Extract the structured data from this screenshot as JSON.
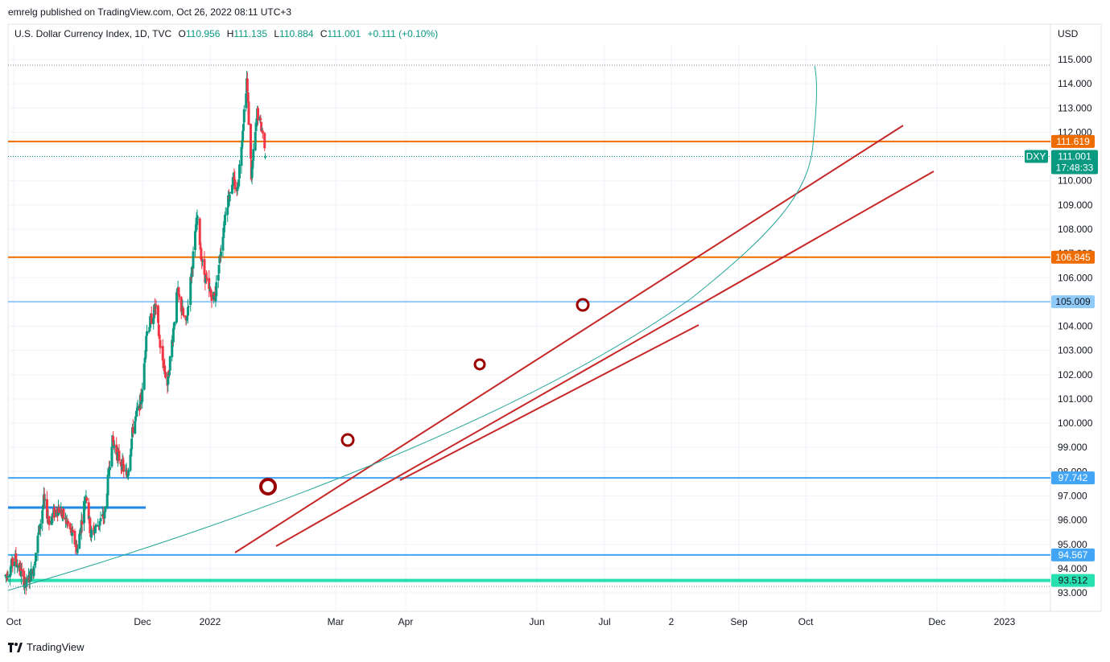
{
  "header": {
    "published": "emrelg published on TradingView.com, Oct 26, 2022 08:11 UTC+3",
    "symbol_desc": "U.S. Dollar Currency Index, 1D, TVC",
    "o_label": "O",
    "o_value": "110.956",
    "h_label": "H",
    "h_value": "111.135",
    "l_label": "L",
    "l_value": "110.884",
    "c_label": "C",
    "c_value": "111.001",
    "change": "+0.111 (+0.10%)",
    "currency": "USD"
  },
  "footer": {
    "brand": "TradingView"
  },
  "colors": {
    "up": "#089981",
    "down": "#f23645",
    "orange": "#ef6c00",
    "light_blue": "#90caf9",
    "blue": "#42a5f5",
    "green": "#26e0b0",
    "channel": "#c62828",
    "curve": "#26a69a"
  },
  "chart_data": {
    "type": "candlestick",
    "symbol": "DXY",
    "timeframe": "1D",
    "ylim": [
      92.8,
      115.3
    ],
    "y_ticks": [
      "93.000",
      "94.000",
      "95.000",
      "96.000",
      "97.000",
      "98.000",
      "99.000",
      "100.000",
      "101.000",
      "102.000",
      "103.000",
      "104.000",
      "105.000",
      "106.000",
      "107.000",
      "108.000",
      "109.000",
      "110.000",
      "111.000",
      "112.000",
      "113.000",
      "114.000",
      "115.000"
    ],
    "x_ticks": [
      "Oct",
      "Dec",
      "2022",
      "Mar",
      "Apr",
      "Jun",
      "Jul",
      "2",
      "Sep",
      "Oct",
      "Dec",
      "2023"
    ],
    "last_price": {
      "label": "DXY",
      "value": "111.001",
      "countdown": "17:48:33"
    },
    "price_levels": [
      {
        "label": "111.619",
        "value": 111.619,
        "color": "orange"
      },
      {
        "label": "106.845",
        "value": 106.845,
        "color": "orange"
      },
      {
        "label": "105.009",
        "value": 105.009,
        "color": "light_blue"
      },
      {
        "label": "97.742",
        "value": 97.742,
        "color": "blue"
      },
      {
        "label": "94.567",
        "value": 94.567,
        "color": "blue"
      },
      {
        "label": "93.512",
        "value": 93.512,
        "color": "green"
      }
    ],
    "series_anchors": [
      [
        "2021-09-27",
        93.7
      ],
      [
        "2021-10-12",
        94.4
      ],
      [
        "2021-10-28",
        93.3
      ],
      [
        "2021-11-08",
        94.0
      ],
      [
        "2021-11-24",
        96.8
      ],
      [
        "2021-12-02",
        96.0
      ],
      [
        "2021-12-16",
        96.5
      ],
      [
        "2021-12-31",
        95.8
      ],
      [
        "2022-01-14",
        94.8
      ],
      [
        "2022-01-27",
        97.2
      ],
      [
        "2022-02-03",
        95.4
      ],
      [
        "2022-02-24",
        96.2
      ],
      [
        "2022-03-07",
        99.3
      ],
      [
        "2022-03-14",
        98.8
      ],
      [
        "2022-03-30",
        97.8
      ],
      [
        "2022-04-08",
        99.8
      ],
      [
        "2022-04-22",
        101.2
      ],
      [
        "2022-04-28",
        103.7
      ],
      [
        "2022-05-12",
        104.8
      ],
      [
        "2022-05-20",
        103.0
      ],
      [
        "2022-05-30",
        101.6
      ],
      [
        "2022-06-14",
        105.4
      ],
      [
        "2022-06-27",
        104.0
      ],
      [
        "2022-07-14",
        108.5
      ],
      [
        "2022-07-22",
        106.5
      ],
      [
        "2022-08-01",
        105.4
      ],
      [
        "2022-08-10",
        105.2
      ],
      [
        "2022-08-26",
        108.8
      ],
      [
        "2022-09-05",
        110.0
      ],
      [
        "2022-09-13",
        109.6
      ],
      [
        "2022-09-27",
        114.2
      ],
      [
        "2022-10-04",
        110.2
      ],
      [
        "2022-10-13",
        112.8
      ],
      [
        "2022-10-21",
        112.0
      ],
      [
        "2022-10-25",
        111.001
      ]
    ]
  }
}
